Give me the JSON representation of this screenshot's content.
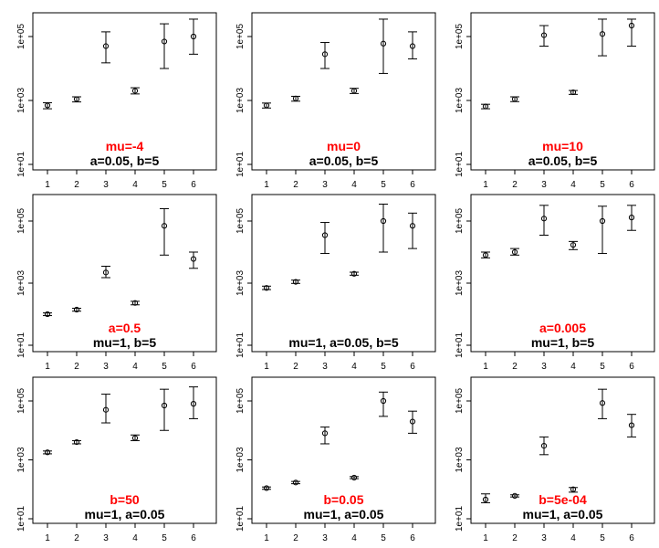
{
  "chart_data": [
    {
      "type": "scatter",
      "x": [
        1,
        2,
        3,
        4,
        5,
        6
      ],
      "y": [
        700,
        1100,
        50000,
        2000,
        70000,
        100000
      ],
      "lower": [
        550,
        900,
        15000,
        1600,
        10000,
        28000
      ],
      "upper": [
        850,
        1300,
        140000,
        2500,
        250000,
        350000
      ],
      "yscale": "log",
      "ylim": [
        10,
        1000000
      ],
      "xticks": [
        "1",
        "2",
        "3",
        "4",
        "5",
        "6"
      ],
      "yticks": [
        "1e+01",
        "1e+03",
        "1e+05"
      ],
      "annotation_top": "mu=-4",
      "annotation_bottom": "a=0.05, b=5"
    },
    {
      "type": "scatter",
      "x": [
        1,
        2,
        3,
        4,
        5,
        6
      ],
      "y": [
        700,
        1150,
        28000,
        2000,
        60000,
        50000
      ],
      "lower": [
        580,
        950,
        10000,
        1650,
        7000,
        20000
      ],
      "upper": [
        830,
        1350,
        65000,
        2400,
        350000,
        140000
      ],
      "yscale": "log",
      "ylim": [
        10,
        1000000
      ],
      "xticks": [
        "1",
        "2",
        "3",
        "4",
        "5",
        "6"
      ],
      "yticks": [
        "1e+01",
        "1e+03",
        "1e+05"
      ],
      "annotation_top": "mu=0",
      "annotation_bottom": "a=0.05, b=5"
    },
    {
      "type": "scatter",
      "x": [
        1,
        2,
        3,
        4,
        5,
        6
      ],
      "y": [
        650,
        1100,
        110000,
        1800,
        120000,
        220000
      ],
      "lower": [
        550,
        920,
        50000,
        1550,
        25000,
        50000
      ],
      "upper": [
        760,
        1300,
        220000,
        2050,
        350000,
        350000
      ],
      "yscale": "log",
      "ylim": [
        10,
        1000000
      ],
      "xticks": [
        "1",
        "2",
        "3",
        "4",
        "5",
        "6"
      ],
      "yticks": [
        "1e+01",
        "1e+03",
        "1e+05"
      ],
      "annotation_top": "mu=10",
      "annotation_bottom": "a=0.05, b=5"
    },
    {
      "type": "scatter",
      "x": [
        1,
        2,
        3,
        4,
        5,
        6
      ],
      "y": [
        100,
        140,
        2200,
        230,
        70000,
        6000
      ],
      "lower": [
        90,
        125,
        1500,
        200,
        8000,
        3000
      ],
      "upper": [
        110,
        155,
        3500,
        260,
        250000,
        10000
      ],
      "yscale": "log",
      "ylim": [
        10,
        1000000
      ],
      "xticks": [
        "1",
        "2",
        "3",
        "4",
        "5",
        "6"
      ],
      "yticks": [
        "1e+01",
        "1e+03",
        "1e+05"
      ],
      "annotation_top": "a=0.5",
      "annotation_bottom": "mu=1, b=5"
    },
    {
      "type": "scatter",
      "x": [
        1,
        2,
        3,
        4,
        5,
        6
      ],
      "y": [
        700,
        1100,
        35000,
        2000,
        100000,
        70000
      ],
      "lower": [
        620,
        980,
        9000,
        1800,
        10000,
        13000
      ],
      "upper": [
        800,
        1250,
        90000,
        2250,
        350000,
        180000
      ],
      "yscale": "log",
      "ylim": [
        10,
        1000000
      ],
      "xticks": [
        "1",
        "2",
        "3",
        "4",
        "5",
        "6"
      ],
      "yticks": [
        "1e+01",
        "1e+03",
        "1e+05"
      ],
      "annotation_top": "",
      "annotation_bottom": "mu=1, a=0.05, b=5"
    },
    {
      "type": "scatter",
      "x": [
        1,
        2,
        3,
        4,
        5,
        6
      ],
      "y": [
        8000,
        10000,
        120000,
        17000,
        100000,
        130000
      ],
      "lower": [
        6500,
        8000,
        35000,
        12000,
        9000,
        50000
      ],
      "upper": [
        10000,
        13000,
        320000,
        22000,
        300000,
        320000
      ],
      "yscale": "log",
      "ylim": [
        10,
        1000000
      ],
      "xticks": [
        "1",
        "2",
        "3",
        "4",
        "5",
        "6"
      ],
      "yticks": [
        "1e+01",
        "1e+03",
        "1e+05"
      ],
      "annotation_top": "a=0.005",
      "annotation_bottom": "mu=1, b=5"
    },
    {
      "type": "scatter",
      "x": [
        1,
        2,
        3,
        4,
        5,
        6
      ],
      "y": [
        1800,
        4000,
        50000,
        5500,
        70000,
        80000
      ],
      "lower": [
        1600,
        3500,
        18000,
        4500,
        10000,
        25000
      ],
      "upper": [
        2000,
        4500,
        170000,
        7000,
        250000,
        300000
      ],
      "yscale": "log",
      "ylim": [
        10,
        1000000
      ],
      "xticks": [
        "1",
        "2",
        "3",
        "4",
        "5",
        "6"
      ],
      "yticks": [
        "1e+01",
        "1e+03",
        "1e+05"
      ],
      "annotation_top": "b=50",
      "annotation_bottom": "mu=1, a=0.05"
    },
    {
      "type": "scatter",
      "x": [
        1,
        2,
        3,
        4,
        5,
        6
      ],
      "y": [
        110,
        170,
        8000,
        250,
        100000,
        20000
      ],
      "lower": [
        100,
        155,
        3500,
        230,
        30000,
        8000
      ],
      "upper": [
        120,
        185,
        13000,
        270,
        200000,
        45000
      ],
      "yscale": "log",
      "ylim": [
        10,
        1000000
      ],
      "xticks": [
        "1",
        "2",
        "3",
        "4",
        "5",
        "6"
      ],
      "yticks": [
        "1e+01",
        "1e+03",
        "1e+05"
      ],
      "annotation_top": "b=0.05",
      "annotation_bottom": "mu=1, a=0.05"
    },
    {
      "type": "scatter",
      "x": [
        1,
        2,
        3,
        4,
        5,
        6
      ],
      "y": [
        45,
        60,
        3000,
        100,
        85000,
        15000
      ],
      "lower": [
        35,
        55,
        1500,
        80,
        25000,
        6000
      ],
      "upper": [
        70,
        65,
        6000,
        115,
        250000,
        35000
      ],
      "yscale": "log",
      "ylim": [
        10,
        1000000
      ],
      "xticks": [
        "1",
        "2",
        "3",
        "4",
        "5",
        "6"
      ],
      "yticks": [
        "1e+01",
        "1e+03",
        "1e+05"
      ],
      "annotation_top": "b=5e-04",
      "annotation_bottom": "mu=1, a=0.05"
    }
  ],
  "colors": {
    "axis": "#000000",
    "points": "#000000",
    "highlight": "#ff0000",
    "text": "#000000"
  }
}
